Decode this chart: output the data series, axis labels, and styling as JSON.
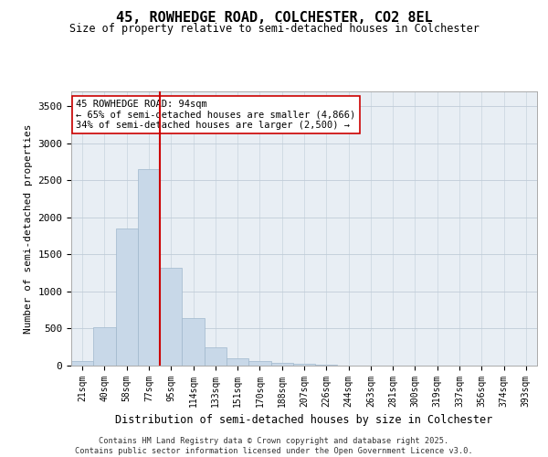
{
  "title1": "45, ROWHEDGE ROAD, COLCHESTER, CO2 8EL",
  "title2": "Size of property relative to semi-detached houses in Colchester",
  "xlabel": "Distribution of semi-detached houses by size in Colchester",
  "ylabel": "Number of semi-detached properties",
  "bar_values": [
    60,
    520,
    1850,
    2650,
    1320,
    640,
    245,
    100,
    60,
    40,
    25,
    15,
    5,
    2,
    1,
    0,
    0,
    0,
    0,
    0,
    0
  ],
  "bin_labels": [
    "21sqm",
    "40sqm",
    "58sqm",
    "77sqm",
    "95sqm",
    "114sqm",
    "133sqm",
    "151sqm",
    "170sqm",
    "188sqm",
    "207sqm",
    "226sqm",
    "244sqm",
    "263sqm",
    "281sqm",
    "300sqm",
    "319sqm",
    "337sqm",
    "356sqm",
    "374sqm",
    "393sqm"
  ],
  "bar_color": "#c8d8e8",
  "bar_edge_color": "#a0b8cc",
  "vline_color": "#cc0000",
  "annotation_text": "45 ROWHEDGE ROAD: 94sqm\n← 65% of semi-detached houses are smaller (4,866)\n34% of semi-detached houses are larger (2,500) →",
  "annotation_box_color": "#ffffff",
  "annotation_border_color": "#cc0000",
  "background_color": "#e8eef4",
  "footer_text": "Contains HM Land Registry data © Crown copyright and database right 2025.\nContains public sector information licensed under the Open Government Licence v3.0.",
  "ylim": [
    0,
    3700
  ],
  "yticks": [
    0,
    500,
    1000,
    1500,
    2000,
    2500,
    3000,
    3500
  ]
}
